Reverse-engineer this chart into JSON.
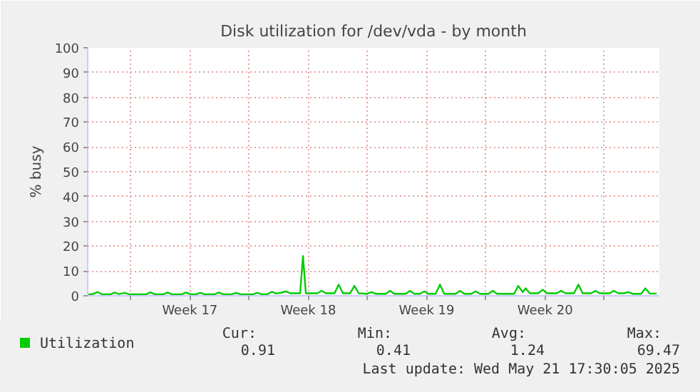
{
  "chart_data": {
    "type": "line",
    "title": "Disk utilization for /dev/vda - by month",
    "ylabel": "% busy",
    "x": [
      "2025-04-18T11:00",
      "2025-04-18T17:00",
      "2025-04-19T01:10",
      "2025-04-19T07:10",
      "2025-04-19T19:25",
      "2025-04-20T01:25",
      "2025-04-20T07:25",
      "2025-04-20T15:35",
      "2025-04-20T21:50",
      "2025-04-21T22:00",
      "2025-04-22T04:00",
      "2025-04-22T10:00",
      "2025-04-22T22:20",
      "2025-04-23T04:20",
      "2025-04-23T10:20",
      "2025-04-24T00:25",
      "2025-04-24T06:40",
      "2025-04-24T12:40",
      "2025-04-24T20:50",
      "2025-04-25T02:50",
      "2025-04-25T08:50",
      "2025-04-25T23:00",
      "2025-04-26T05:15",
      "2025-04-26T11:15",
      "2025-04-26T23:30",
      "2025-04-27T05:30",
      "2025-04-27T11:30",
      "2025-04-28T05:40",
      "2025-04-28T11:40",
      "2025-04-28T18:00",
      "2025-04-29T01:55",
      "2025-04-29T08:10",
      "2025-04-29T14:10",
      "2025-04-29T22:20",
      "2025-04-30T04:20",
      "2025-04-30T10:20",
      "2025-05-01T00:25",
      "2025-05-01T04:30",
      "2025-05-01T08:35",
      "2025-05-02T00:55",
      "2025-05-02T06:55",
      "2025-05-02T12:55",
      "2025-05-03T01:10",
      "2025-05-03T07:10",
      "2025-05-03T13:10",
      "2025-05-03T23:10",
      "2025-05-04T05:30",
      "2025-05-04T11:30",
      "2025-05-04T23:40",
      "2025-05-05T05:40",
      "2025-05-05T11:40",
      "2025-05-06T01:55",
      "2025-05-06T08:05",
      "2025-05-06T14:05",
      "2025-05-07T06:10",
      "2025-05-07T12:25",
      "2025-05-07T18:25",
      "2025-05-08T02:35",
      "2025-05-08T08:35",
      "2025-05-08T14:35",
      "2025-05-09T00:40",
      "2025-05-09T06:55",
      "2025-05-09T12:55",
      "2025-05-10T05:00",
      "2025-05-10T11:15",
      "2025-05-10T17:15",
      "2025-05-11T03:20",
      "2025-05-11T09:20",
      "2025-05-11T15:35",
      "2025-05-12T03:35",
      "2025-05-12T09:50",
      "2025-05-12T15:50",
      "2025-05-13T16:00",
      "2025-05-13T22:00",
      "2025-05-14T04:15",
      "2025-05-14T08:25",
      "2025-05-14T14:25",
      "2025-05-15T02:25",
      "2025-05-15T08:35",
      "2025-05-15T14:35",
      "2025-05-16T04:45",
      "2025-05-16T10:45",
      "2025-05-16T17:00",
      "2025-05-17T05:00",
      "2025-05-17T11:15",
      "2025-05-17T17:15",
      "2025-05-18T05:15",
      "2025-05-18T11:30",
      "2025-05-18T17:30",
      "2025-05-19T07:35",
      "2025-05-19T13:35",
      "2025-05-19T19:55",
      "2025-05-20T03:50",
      "2025-05-20T10:00",
      "2025-05-20T16:00",
      "2025-05-21T04:20",
      "2025-05-21T10:20",
      "2025-05-21T16:20",
      "2025-05-22T02:25"
    ],
    "series": [
      {
        "name": "Utilization",
        "color": "#00cc00",
        "values": [
          0.6,
          0.6,
          1.5,
          0.6,
          0.6,
          1.3,
          0.7,
          1.2,
          0.6,
          0.6,
          1.4,
          0.6,
          0.6,
          1.3,
          0.6,
          0.6,
          1.3,
          0.6,
          0.6,
          1.2,
          0.6,
          0.6,
          1.3,
          0.6,
          0.6,
          1.2,
          0.6,
          0.6,
          1.2,
          0.6,
          0.6,
          1.6,
          0.9,
          1.3,
          1.8,
          1.0,
          1.0,
          16,
          1.0,
          1.0,
          2.0,
          1.0,
          1.0,
          4.5,
          1.0,
          1.0,
          4.0,
          1.0,
          0.8,
          1.5,
          0.8,
          0.8,
          2.0,
          0.8,
          0.8,
          2.0,
          0.8,
          0.8,
          1.8,
          0.8,
          0.8,
          4.5,
          0.8,
          0.8,
          2.0,
          0.8,
          0.8,
          1.8,
          0.8,
          0.8,
          2.0,
          0.8,
          0.8,
          4.0,
          1.5,
          3.0,
          1.0,
          1.0,
          2.5,
          1.0,
          1.0,
          2.0,
          1.0,
          1.0,
          4.5,
          1.0,
          1.0,
          2.0,
          1.0,
          1.0,
          2.0,
          1.0,
          1.0,
          1.5,
          0.8,
          0.8,
          3.0,
          0.9,
          0.9
        ]
      }
    ],
    "xlim": [
      "2025-04-18T11:00",
      "2025-05-22T06:10"
    ],
    "xticks": [
      {
        "value": "2025-04-21",
        "label": null
      },
      {
        "value": "2025-04-24T12:00",
        "label": "Week 17"
      },
      {
        "value": "2025-04-28",
        "label": null
      },
      {
        "value": "2025-05-01T12:00",
        "label": "Week 18"
      },
      {
        "value": "2025-05-05",
        "label": null
      },
      {
        "value": "2025-05-08T12:00",
        "label": "Week 19"
      },
      {
        "value": "2025-05-12",
        "label": null
      },
      {
        "value": "2025-05-15T12:00",
        "label": "Week 20"
      },
      {
        "value": "2025-05-19",
        "label": null
      }
    ],
    "ylim": [
      0,
      100
    ],
    "yticks": [
      0,
      10,
      20,
      30,
      40,
      50,
      60,
      70,
      80,
      90,
      100
    ],
    "grid": true,
    "legend": "bottom left",
    "marker": "none",
    "line_style": "solid",
    "annotations": [
      "Cur:",
      "Min:",
      "Avg:",
      "Max:",
      "0.91",
      "0.41",
      "1.24",
      "69.47",
      "Last update: Wed May 21 17:30:05 2025"
    ]
  }
}
